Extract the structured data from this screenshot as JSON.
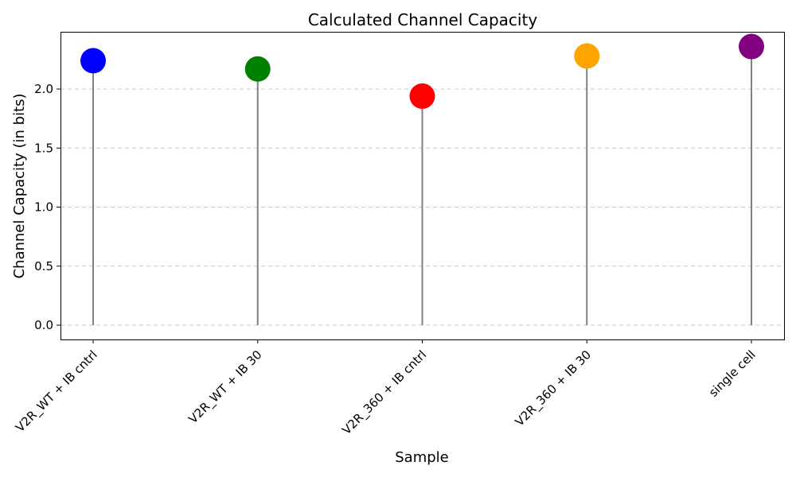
{
  "chart_data": {
    "type": "scatter",
    "style": "lollipop",
    "title": "Calculated Channel Capacity",
    "xlabel": "Sample",
    "ylabel": "Channel Capacity (in bits)",
    "categories": [
      "V2R_WT + IB cntrl",
      "V2R_WT + IB 30",
      "V2R_360 + IB cntrl",
      "V2R_360 + IB 30",
      "single cell"
    ],
    "values": [
      2.24,
      2.17,
      1.94,
      2.28,
      2.36
    ],
    "colors": [
      "#0000ff",
      "#008000",
      "#ff0000",
      "#ffa500",
      "#800080"
    ],
    "stem_color": "#808080",
    "yticks": [
      "0.0",
      "0.5",
      "1.0",
      "1.5",
      "2.0"
    ],
    "ylim": [
      -0.12,
      2.48
    ],
    "grid": "horizontal dashed",
    "legend": "none"
  }
}
